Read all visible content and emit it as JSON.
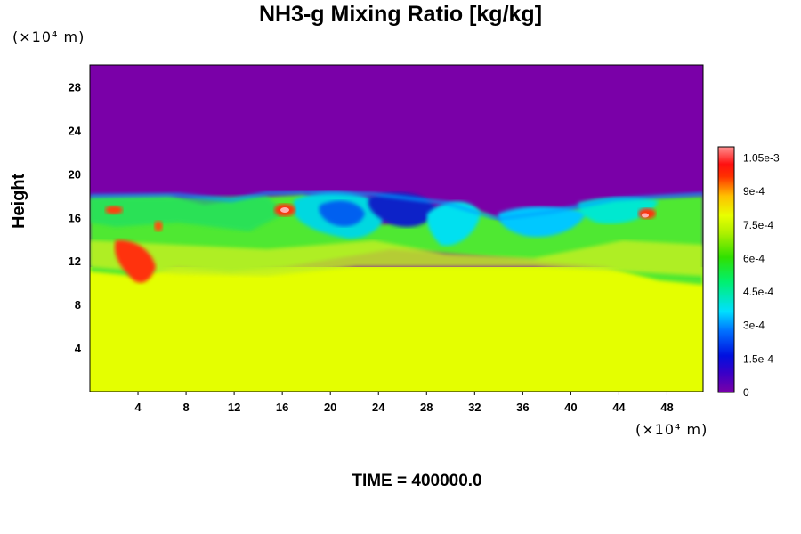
{
  "chart_data": {
    "type": "heatmap",
    "title": "NH3-g Mixing Ratio [kg/kg]",
    "ylabel": "Height",
    "xlabel": "",
    "x_unit": "(×10⁴ m)",
    "y_unit": "(×10⁴ m)",
    "xlim": [
      0,
      51
    ],
    "ylim": [
      0,
      30
    ],
    "x_ticks": [
      "4",
      "8",
      "12",
      "16",
      "20",
      "24",
      "28",
      "32",
      "36",
      "40",
      "44",
      "48"
    ],
    "x_tick_values": [
      4,
      8,
      12,
      16,
      20,
      24,
      28,
      32,
      36,
      40,
      44,
      48
    ],
    "y_ticks": [
      "4",
      "8",
      "12",
      "16",
      "20",
      "24",
      "28"
    ],
    "y_tick_values": [
      4,
      8,
      12,
      16,
      20,
      24,
      28
    ],
    "colorbar": {
      "min": 0,
      "max": 0.0011,
      "tick_labels": [
        "0",
        "1.5e-4",
        "3e-4",
        "4.5e-4",
        "6e-4",
        "7.5e-4",
        "9e-4",
        "1.05e-3"
      ],
      "tick_values": [
        0,
        0.00015,
        0.0003,
        0.00045,
        0.0006,
        0.00075,
        0.0009,
        0.00105
      ],
      "colormap": "rainbow (purple-blue-cyan-green-yellow-red-pink)"
    },
    "field_description": {
      "lower_layer_value": 0.00078,
      "upper_layer_value": 0.0,
      "interface_height_approx": 18
    },
    "footer": "TIME = 400000.0"
  }
}
